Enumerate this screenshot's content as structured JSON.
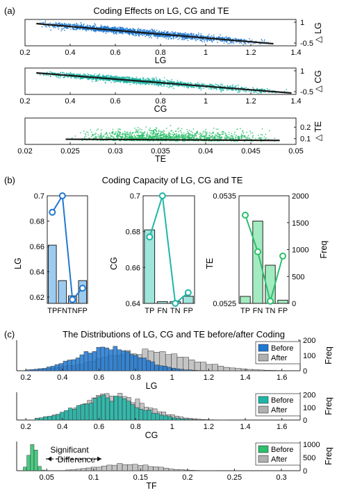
{
  "panel_labels": {
    "a": "(a)",
    "b": "(b)",
    "c": "(c)"
  },
  "titles": {
    "a": "Coding Effects on LG, CG and TE",
    "b": "Coding Capacity of LG, CG and TE",
    "c": "The Distributions of LG, CG and TE before/after Coding"
  },
  "annotation": {
    "line1": "Significant",
    "line2": "Difference"
  },
  "colors": {
    "lg": "#1f78d1",
    "cg": "#1fb5a6",
    "te": "#2dbf6c",
    "lg_bar": "#9ccbef",
    "cg_bar": "#9ee5dc",
    "te_bar": "#a3ebc0",
    "after": "#b0b0b0"
  },
  "chart_data": [
    {
      "id": "a-lg",
      "type": "scatter",
      "xlabel": "LG",
      "ylabel": "△ LG",
      "xlim": [
        0.2,
        1.4
      ],
      "ylim": [
        -0.7,
        1.2
      ],
      "xticks": [
        "0.2",
        "0.4",
        "0.6",
        "0.8",
        "1",
        "1.2",
        "1.4"
      ],
      "yticks": [
        "-0.5",
        "1"
      ],
      "n_points": 1800,
      "x_range": [
        0.25,
        1.3
      ],
      "x_mode": 0.6,
      "fit_line": {
        "x": [
          0.25,
          1.3
        ],
        "y": [
          0.9,
          -0.55
        ]
      },
      "spread": 0.22
    },
    {
      "id": "a-cg",
      "type": "scatter",
      "xlabel": "CG",
      "ylabel": "△ CG",
      "xlim": [
        0.2,
        1.4
      ],
      "ylim": [
        -0.7,
        1.2
      ],
      "xticks": [
        "0.2",
        "0.4",
        "0.6",
        "0.8",
        "1",
        "1.2",
        "1.4"
      ],
      "yticks": [
        "-0.5",
        "1"
      ],
      "n_points": 1800,
      "x_range": [
        0.25,
        1.38
      ],
      "x_mode": 0.6,
      "fit_line": {
        "x": [
          0.25,
          1.38
        ],
        "y": [
          0.85,
          -0.6
        ]
      },
      "spread": 0.2
    },
    {
      "id": "a-te",
      "type": "scatter",
      "xlabel": "TE",
      "ylabel": "△ TE",
      "xlim": [
        0.02,
        0.05
      ],
      "ylim": [
        0.05,
        0.28
      ],
      "xticks": [
        "0.02",
        "0.025",
        "0.03",
        "0.035",
        "0.04",
        "0.045",
        "0.05"
      ],
      "yticks": [
        "0.1",
        "0.2"
      ],
      "n_points": 1400,
      "x_range": [
        0.025,
        0.048
      ],
      "x_mode": 0.035,
      "fit_line": {
        "x": [
          0.0245,
          0.0482
        ],
        "y": [
          0.095,
          0.085
        ]
      },
      "spread": 0.045
    },
    {
      "id": "b-lg",
      "type": "bar",
      "ylabel": "LG",
      "categories": [
        "TP",
        "FN",
        "TN",
        "FP"
      ],
      "ylim": [
        0.615,
        0.7
      ],
      "yticks": [
        "0.62",
        "0.64",
        "0.66",
        "0.68",
        "0.7"
      ],
      "bar_values": [
        0.661,
        0.633,
        0.621,
        0.633
      ],
      "line_values": [
        0.687,
        0.7,
        0.618,
        0.627
      ]
    },
    {
      "id": "b-cg",
      "type": "bar",
      "ylabel": "CG",
      "categories": [
        "TP",
        "FN",
        "TN",
        "FP"
      ],
      "ylim": [
        0.64,
        0.7
      ],
      "yticks": [
        "0.64",
        "0.66",
        "0.68",
        "0.7"
      ],
      "bar_values": [
        0.681,
        0.641,
        0.641,
        0.644
      ],
      "line_values": [
        0.677,
        0.7,
        0.64,
        0.646
      ]
    },
    {
      "id": "b-te",
      "type": "bar",
      "ylabel": "TE",
      "y2label": "Freq",
      "categories": [
        "TP",
        "FN",
        "TN",
        "FP"
      ],
      "ylim": [
        0.0525,
        0.0535
      ],
      "yticks": [
        "0.0525",
        "0.0535"
      ],
      "y2lim": [
        0,
        2000
      ],
      "y2ticks": [
        "0",
        "500",
        "1000",
        "1500",
        "2000"
      ],
      "bar_values": [
        130,
        1530,
        710,
        60
      ],
      "line_values": [
        0.05332,
        0.05298,
        0.05252,
        0.05294
      ]
    },
    {
      "id": "c-lg",
      "type": "histogram",
      "xlabel": "LG",
      "ylabel": "Freq",
      "xlim": [
        0.15,
        1.7
      ],
      "xticks": [
        "0.2",
        "0.4",
        "0.6",
        "0.8",
        "1",
        "1.2",
        "1.4",
        "1.6"
      ],
      "ylim": [
        0,
        200
      ],
      "yticks": [
        "0",
        "100",
        "200"
      ],
      "series": [
        {
          "name": "Before",
          "mean": 0.65,
          "sd": 0.17,
          "peak": 150,
          "range": [
            0.2,
            1.2
          ]
        },
        {
          "name": "After",
          "mean": 0.85,
          "sd": 0.25,
          "peak": 125,
          "range": [
            0.2,
            1.6
          ]
        }
      ]
    },
    {
      "id": "c-cg",
      "type": "histogram",
      "xlabel": "CG",
      "ylabel": "Freq",
      "xlim": [
        0.15,
        1.7
      ],
      "xticks": [
        "0.2",
        "0.4",
        "0.6",
        "0.8",
        "1",
        "1.2",
        "1.4",
        "1.6"
      ],
      "ylim": [
        0,
        220
      ],
      "yticks": [
        "0",
        "100",
        "200"
      ],
      "series": [
        {
          "name": "Before",
          "mean": 0.65,
          "sd": 0.17,
          "peak": 175,
          "range": [
            0.25,
            1.25
          ]
        },
        {
          "name": "After",
          "mean": 0.68,
          "sd": 0.18,
          "peak": 190,
          "range": [
            0.25,
            1.3
          ]
        }
      ]
    },
    {
      "id": "c-te",
      "type": "histogram",
      "xlabel": "TF",
      "ylabel": "Freq",
      "xlim": [
        0.018,
        0.32
      ],
      "xticks": [
        "0.05",
        "0.1",
        "0.15",
        "0.2",
        "0.25",
        "0.3"
      ],
      "ylim": [
        0,
        1100
      ],
      "yticks": [
        "0",
        "500",
        "1000"
      ],
      "series": [
        {
          "name": "Before",
          "mean": 0.035,
          "sd": 0.004,
          "peak": 980,
          "range": [
            0.025,
            0.048
          ]
        },
        {
          "name": "After",
          "mean": 0.135,
          "sd": 0.03,
          "peak": 250,
          "range": [
            0.07,
            0.29
          ]
        }
      ]
    }
  ]
}
